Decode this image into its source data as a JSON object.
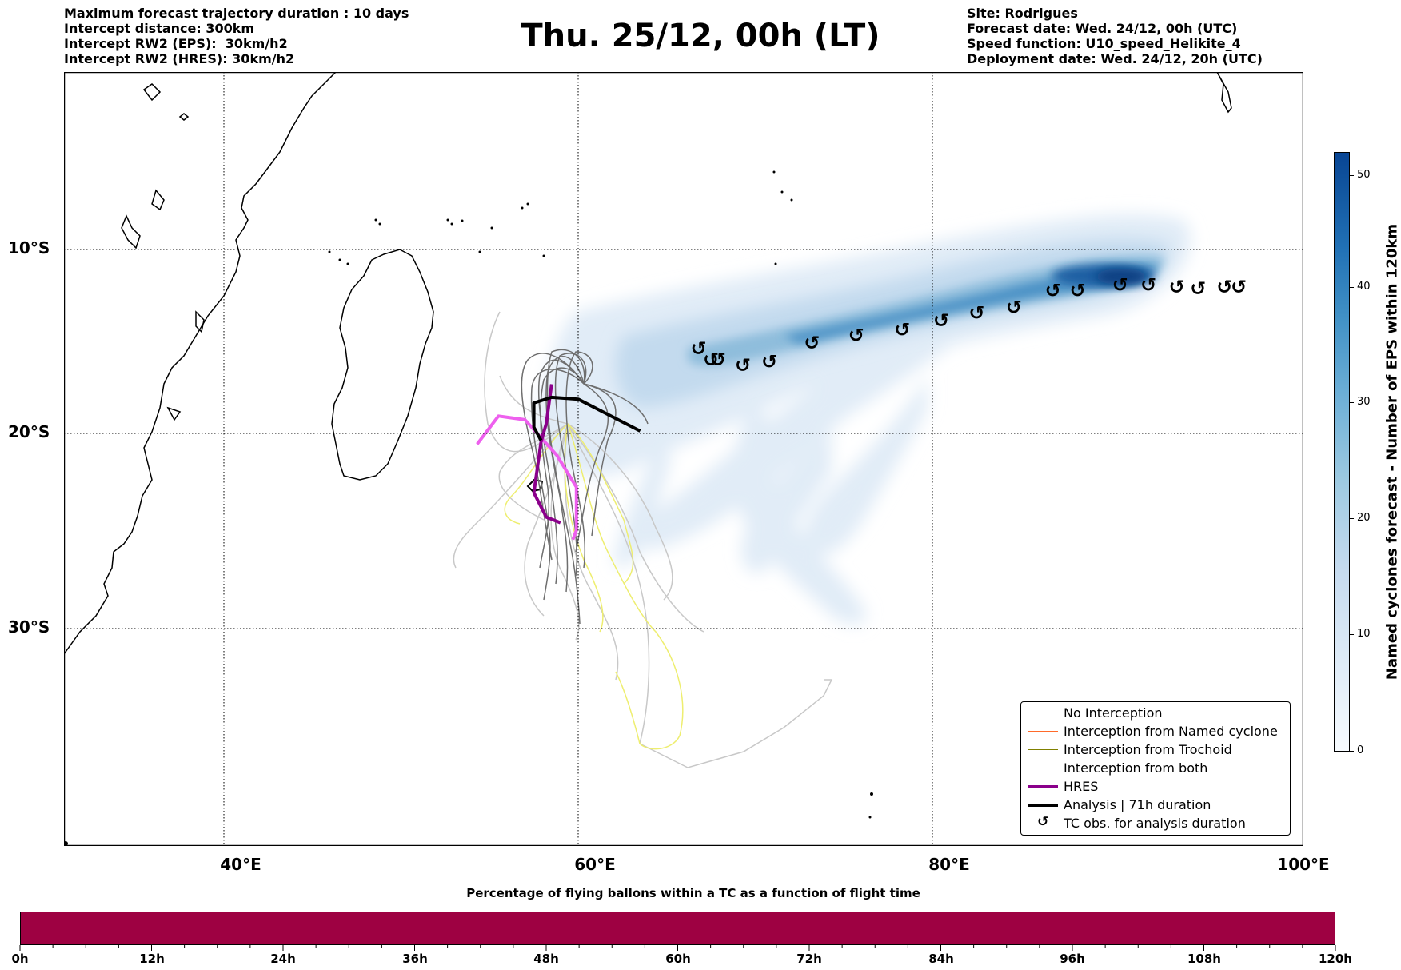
{
  "header": {
    "left_lines": [
      "Maximum forecast trajectory duration : 10 days",
      "Intercept distance: 300km",
      "Intercept RW2 (EPS):  30km/h2",
      "Intercept RW2 (HRES): 30km/h2"
    ],
    "right_lines": [
      "Site: Rodrigues",
      "Forecast date: Wed. 24/12, 00h (UTC)",
      "Speed function: U10_speed_Helikite_4",
      "Deployment date: Wed. 24/12, 20h (UTC)"
    ],
    "title": "Thu. 25/12, 00h (LT)"
  },
  "map": {
    "lat_labels": [
      "10°S",
      "20°S",
      "30°S"
    ],
    "lon_labels": [
      "40°E",
      "60°E",
      "80°E",
      "100°E"
    ],
    "tc_symbol": "↺",
    "tc_track": [
      {
        "lon": 66.8,
        "lat": -15.3
      },
      {
        "lon": 67.5,
        "lat": -15.9
      },
      {
        "lon": 67.9,
        "lat": -15.9
      },
      {
        "lon": 69.3,
        "lat": -16.2
      },
      {
        "lon": 70.8,
        "lat": -16.0
      },
      {
        "lon": 73.2,
        "lat": -15.0
      },
      {
        "lon": 75.7,
        "lat": -14.6
      },
      {
        "lon": 78.3,
        "lat": -14.3
      },
      {
        "lon": 80.5,
        "lat": -13.8
      },
      {
        "lon": 82.5,
        "lat": -13.4
      },
      {
        "lon": 84.6,
        "lat": -13.1
      },
      {
        "lon": 86.8,
        "lat": -12.2
      },
      {
        "lon": 88.2,
        "lat": -12.2
      },
      {
        "lon": 90.6,
        "lat": -11.9
      },
      {
        "lon": 92.2,
        "lat": -11.9
      },
      {
        "lon": 93.8,
        "lat": -12.0
      },
      {
        "lon": 95.0,
        "lat": -12.1
      },
      {
        "lon": 96.5,
        "lat": -12.0
      },
      {
        "lon": 97.3,
        "lat": -12.0
      }
    ],
    "hres_track": [
      {
        "lon": 54.3,
        "lat": -20.4
      },
      {
        "lon": 55.5,
        "lat": -18.9
      },
      {
        "lon": 57.0,
        "lat": -19.1
      },
      {
        "lon": 58.8,
        "lat": -21.0
      },
      {
        "lon": 59.9,
        "lat": -22.7
      },
      {
        "lon": 59.9,
        "lat": -25.0
      },
      {
        "lon": 59.7,
        "lat": -25.5
      }
    ],
    "hres_track_dark": [
      {
        "lon": 58.5,
        "lat": -17.2
      },
      {
        "lon": 58.2,
        "lat": -19.3
      },
      {
        "lon": 57.9,
        "lat": -20.3
      },
      {
        "lon": 57.5,
        "lat": -23.0
      },
      {
        "lon": 58.2,
        "lat": -24.3
      },
      {
        "lon": 59.0,
        "lat": -24.6
      }
    ],
    "analysis_track": [
      {
        "lon": 63.5,
        "lat": -19.7
      },
      {
        "lon": 60.0,
        "lat": -18.0
      },
      {
        "lon": 58.5,
        "lat": -17.9
      },
      {
        "lon": 57.5,
        "lat": -18.2
      },
      {
        "lon": 57.5,
        "lat": -19.5
      },
      {
        "lon": 57.9,
        "lat": -20.2
      }
    ],
    "colors": {
      "hres": "#8b008b",
      "hres_light": "#ee60ee",
      "analysis": "#000000",
      "no_interception": "#808080",
      "named_cyclone": "#ff6a2a",
      "trochoid": "#808000",
      "both": "#2ca02c",
      "ensemble_light": "#c8c8c8",
      "ensemble_yellow": "#eeee70"
    }
  },
  "legend": {
    "items": [
      {
        "label": "No Interception",
        "color": "#808080",
        "width": 1
      },
      {
        "label": "Interception from Named cyclone",
        "color": "#ff6a2a",
        "width": 1
      },
      {
        "label": "Interception from Trochoid",
        "color": "#808000",
        "width": 1
      },
      {
        "label": "Interception from both",
        "color": "#2ca02c",
        "width": 1
      },
      {
        "label": "HRES",
        "color": "#8b008b",
        "width": 4
      },
      {
        "label": "Analysis | 71h duration",
        "color": "#000000",
        "width": 4
      },
      {
        "label": "TC obs. for analysis duration",
        "symbol": "↺"
      }
    ]
  },
  "colorbar": {
    "title": "Named cyclones forecast - Number of EPS within 120km",
    "ticks": [
      "0",
      "10",
      "20",
      "30",
      "40",
      "50"
    ]
  },
  "bottom": {
    "title": "Percentage of flying ballons within a TC as a function of flight time",
    "color": "#9e0142",
    "ticks": [
      "0h",
      "12h",
      "24h",
      "36h",
      "48h",
      "60h",
      "72h",
      "84h",
      "96h",
      "108h",
      "120h"
    ]
  }
}
